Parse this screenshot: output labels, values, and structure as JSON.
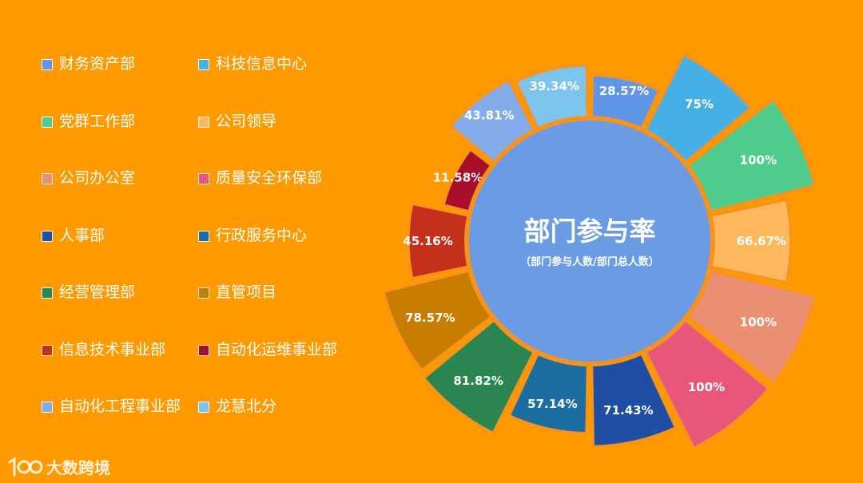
{
  "chart_data": {
    "type": "pie",
    "variant": "donut",
    "title": "部门参与率",
    "subtitle": "（部门参与人数/部门总人数）",
    "legend_position": "left",
    "series": [
      {
        "name": "财务资产部",
        "value": 28.57,
        "label": "28.57%",
        "color": "#5F96E8"
      },
      {
        "name": "科技信息中心",
        "value": 75,
        "label": "75%",
        "color": "#45B0E5"
      },
      {
        "name": "党群工作部",
        "value": 100,
        "label": "100%",
        "color": "#4FCB8C"
      },
      {
        "name": "公司领导",
        "value": 66.67,
        "label": "66.67%",
        "color": "#FDB85E"
      },
      {
        "name": "公司办公室",
        "value": 100,
        "label": "100%",
        "color": "#EB8F74"
      },
      {
        "name": "质量安全环保部",
        "value": 100,
        "label": "100%",
        "color": "#E8577A"
      },
      {
        "name": "人事部",
        "value": 71.43,
        "label": "71.43%",
        "color": "#1F4EA5"
      },
      {
        "name": "行政服务中心",
        "value": 57.14,
        "label": "57.14%",
        "color": "#1C6EA0"
      },
      {
        "name": "经营管理部",
        "value": 81.82,
        "label": "81.82%",
        "color": "#2A8550"
      },
      {
        "name": "直管项目",
        "value": 78.57,
        "label": "78.57%",
        "color": "#C87D00"
      },
      {
        "name": "信息技术事业部",
        "value": 45.16,
        "label": "45.16%",
        "color": "#C4301A"
      },
      {
        "name": "自动化运维事业部",
        "value": 11.58,
        "label": "11.58%",
        "color": "#A80F2A"
      },
      {
        "name": "自动化工程事业部",
        "value": 43.81,
        "label": "43.81%",
        "color": "#84ABEA"
      },
      {
        "name": "龙慧北分",
        "value": 39.34,
        "label": "39.34%",
        "color": "#7CC4EC"
      }
    ]
  },
  "watermark": {
    "text": "大数跨境"
  }
}
